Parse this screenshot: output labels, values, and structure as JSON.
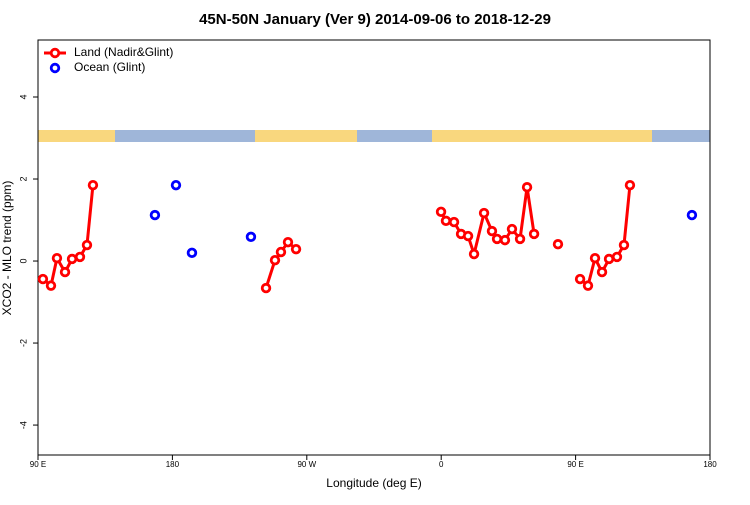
{
  "chart_data": {
    "type": "line",
    "title": "45N-50N January (Ver 9)   2014-09-06 to 2018-12-29",
    "xlabel": "Longitude (deg E)",
    "ylabel": "XCO2 - MLO trend (ppm)",
    "xlim": [
      90,
      540
    ],
    "ylim": [
      -4.73,
      5.39
    ],
    "xticks": [
      {
        "value": 90,
        "label": "90 E"
      },
      180,
      {
        "value": 270,
        "label": "90 W"
      },
      {
        "value": 360,
        "label": "0"
      },
      {
        "value": 450,
        "label": "90 E"
      },
      {
        "value": 540,
        "label": "180"
      }
    ],
    "yticks": [
      -4,
      -2,
      0,
      2,
      4
    ],
    "legend": "top-left",
    "series": [
      {
        "name": "Land (Nadir&Glint)",
        "color": "#ff0000",
        "line": true,
        "x": [
          93.3,
          98.7,
          102.7,
          108.1,
          112.8,
          118.1,
          122.8,
          126.8,
          null,
          242.7,
          248.7,
          252.7,
          257.4,
          262.8,
          null,
          359.9,
          363.2,
          368.6,
          373.3,
          378,
          382,
          388.7,
          394,
          397.4,
          402.7,
          407.4,
          412.8,
          417.5,
          422.2,
          null,
          438.2,
          null,
          453,
          458.3,
          463,
          467.7,
          472.4,
          477.7,
          482.4,
          486.4
        ],
        "values": [
          -0.44,
          -0.6,
          0.07,
          -0.27,
          0.05,
          0.1,
          0.39,
          1.85,
          null,
          -0.66,
          0.02,
          0.22,
          0.46,
          0.29,
          null,
          1.2,
          0.98,
          0.95,
          0.66,
          0.61,
          0.17,
          1.17,
          0.73,
          0.54,
          0.51,
          0.78,
          0.54,
          1.8,
          0.66,
          null,
          0.41,
          null,
          -0.44,
          -0.6,
          0.07,
          -0.27,
          0.05,
          0.1,
          0.39,
          1.85
        ]
      },
      {
        "name": "Ocean (Glint)",
        "color": "#0000ff",
        "line": false,
        "x": [
          168.3,
          182.4,
          193.1,
          232.6,
          527.9
        ],
        "values": [
          1.12,
          1.85,
          0.2,
          0.59,
          1.12
        ]
      }
    ]
  }
}
